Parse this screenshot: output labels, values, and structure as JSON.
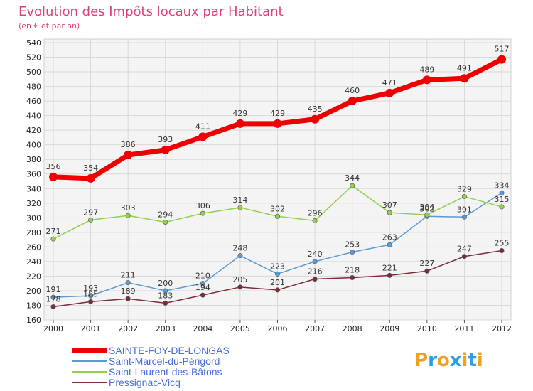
{
  "title": "Evolution des Impôts locaux par Habitant",
  "subtitle": "(en € et par an)",
  "brand": {
    "letters": [
      "P",
      "r",
      "o",
      "x",
      "i",
      "t",
      "i"
    ],
    "colors": [
      "#f0a020",
      "#2aa0e0",
      "#f0a020",
      "#2aa0e0",
      "#f0a020",
      "#2aa0e0",
      "#f0a020"
    ]
  },
  "chart_data": {
    "type": "line",
    "x": [
      "2000",
      "2001",
      "2002",
      "2003",
      "2004",
      "2005",
      "2006",
      "2007",
      "2008",
      "2009",
      "2010",
      "2011",
      "2012"
    ],
    "ylim": [
      160,
      540
    ],
    "yticks": [
      160,
      180,
      200,
      220,
      240,
      260,
      280,
      300,
      320,
      340,
      360,
      380,
      400,
      420,
      440,
      460,
      480,
      500,
      520,
      540
    ],
    "grid": true,
    "legend_position": "bottom-left",
    "series": [
      {
        "name": "SAINTE-FOY-DE-LONGAS",
        "color": "#ee0000",
        "bold": true,
        "values": [
          356,
          354,
          386,
          393,
          411,
          429,
          429,
          435,
          460,
          471,
          489,
          491,
          517
        ],
        "labels": [
          "356",
          "354",
          "386",
          "393",
          "411",
          "429",
          "429",
          "435",
          "460",
          "471",
          "489",
          "491",
          "517"
        ]
      },
      {
        "name": "Saint-Marcel-du-Périgord",
        "color": "#5b9bd5",
        "bold": false,
        "values": [
          191,
          193,
          211,
          200,
          210,
          248,
          223,
          240,
          253,
          263,
          302,
          301,
          334
        ],
        "labels": [
          "191",
          "193",
          "211",
          "200",
          "210",
          "248",
          "223",
          "240",
          "253",
          "263",
          "302",
          "301",
          "334"
        ]
      },
      {
        "name": "Saint-Laurent-des-Bâtons",
        "color": "#92d050",
        "bold": false,
        "values": [
          271,
          297,
          303,
          294,
          306,
          314,
          302,
          296,
          344,
          307,
          304,
          329,
          315
        ],
        "labels": [
          "271",
          "297",
          "303",
          "294",
          "306",
          "314",
          "302",
          "296",
          "344",
          "307",
          "304",
          "329",
          "315"
        ]
      },
      {
        "name": "Pressignac-Vicq",
        "color": "#7b2c3a",
        "bold": false,
        "values": [
          178,
          185,
          189,
          183,
          194,
          205,
          201,
          216,
          218,
          221,
          227,
          247,
          255
        ],
        "labels": [
          "178",
          "185",
          "189",
          "183",
          "194",
          "205",
          "201",
          "216",
          "218",
          "221",
          "227",
          "247",
          "255"
        ]
      }
    ]
  }
}
